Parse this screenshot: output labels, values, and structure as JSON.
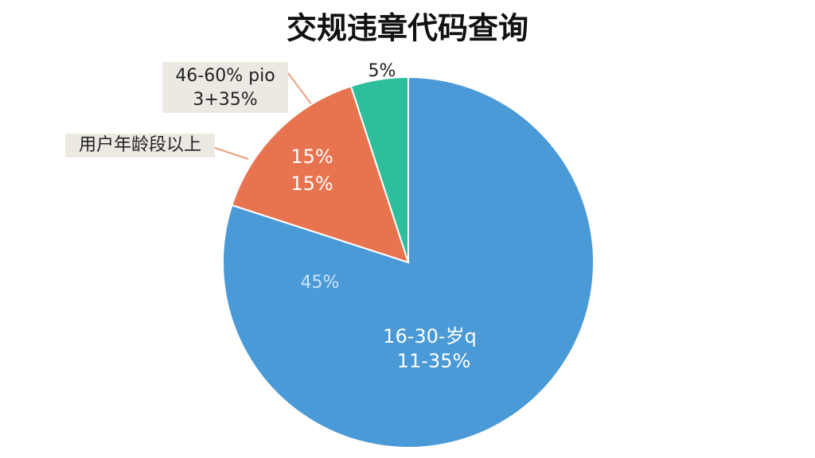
{
  "chart_data": {
    "type": "pie",
    "title": "交规违章代码查询",
    "values": [
      80,
      15,
      5
    ],
    "colors": [
      "#4a9ad8",
      "#e8744f",
      "#2dbf9c"
    ],
    "annotations": [
      "46-60% pio",
      "3+35%",
      "用户年龄段以上",
      "15%",
      "15%",
      "5%",
      "45%",
      "16-30-岁q",
      "11-35%"
    ]
  }
}
